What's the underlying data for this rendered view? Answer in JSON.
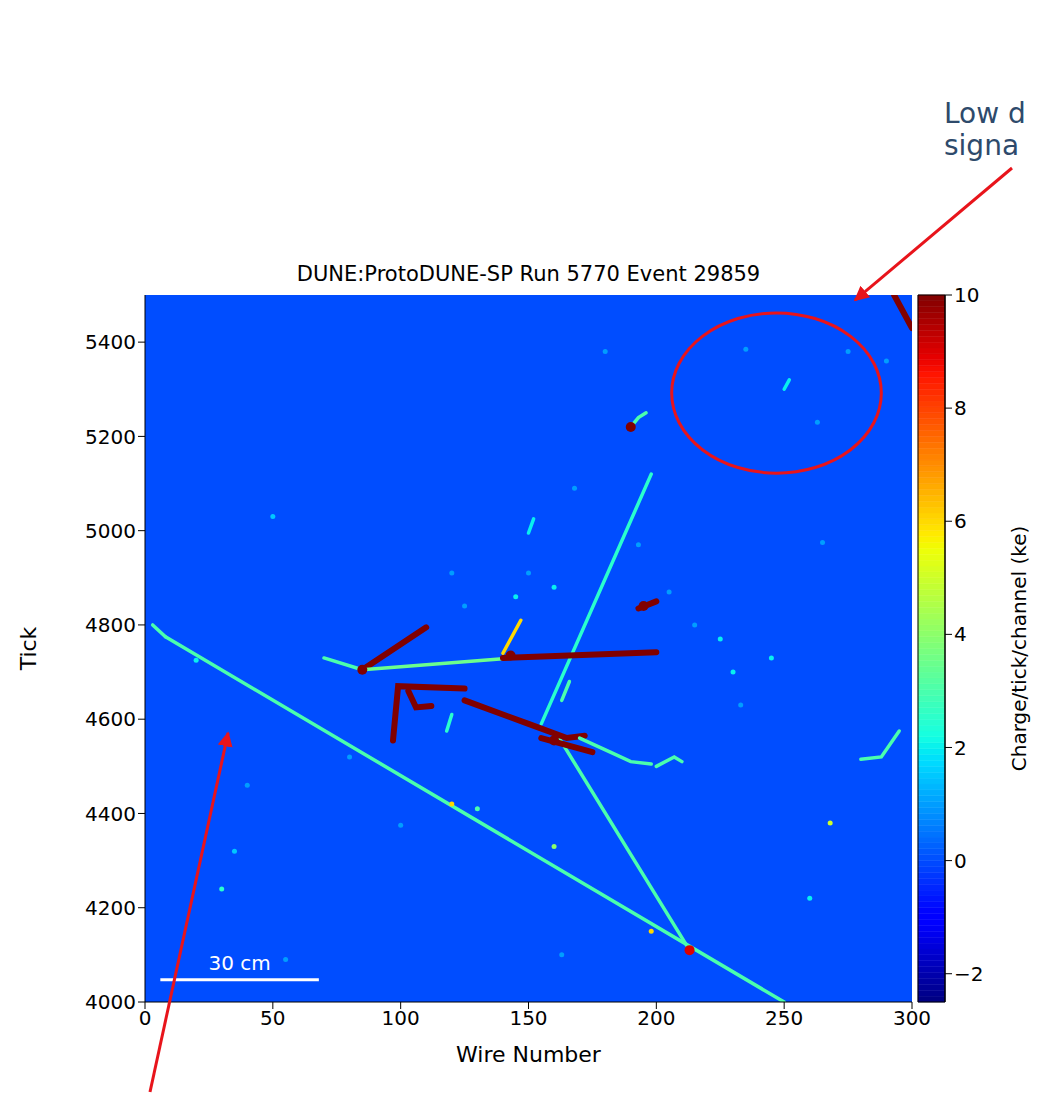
{
  "chart_data": {
    "type": "heatmap",
    "title": "DUNE:ProtoDUNE-SP Run 5770 Event 29859",
    "x_label": "Wire Number",
    "y_label": "Tick",
    "xlim": [
      0,
      300
    ],
    "xticks": [
      0,
      50,
      100,
      150,
      200,
      250,
      300
    ],
    "ylim": [
      4000,
      5500
    ],
    "yticks": [
      4000,
      4200,
      4400,
      4600,
      4800,
      5000,
      5200,
      5400
    ],
    "colorbar": {
      "label": "Charge/tick/channel (ke)",
      "range": [
        -2.5,
        10
      ],
      "ticks": [
        {
          "value": -2,
          "label": "−2"
        },
        0,
        2,
        4,
        6,
        8,
        10
      ]
    },
    "tracks": [
      {
        "x": [
          3,
          8
        ],
        "y": [
          4800,
          4775
        ],
        "charge": 3
      },
      {
        "x": [
          8,
          250
        ],
        "y": [
          4775,
          4000
        ],
        "charge": 3
      },
      {
        "x": [
          213,
          162
        ],
        "y": [
          4110,
          4560
        ],
        "charge": 3
      },
      {
        "x": [
          155,
          198
        ],
        "y": [
          4590,
          5120
        ],
        "charge": 2.5
      },
      {
        "x": [
          85,
          110
        ],
        "y": [
          4705,
          4795
        ],
        "charge": 10
      },
      {
        "x": [
          70,
          85
        ],
        "y": [
          4730,
          4705
        ],
        "charge": 3
      },
      {
        "x": [
          85,
          140
        ],
        "y": [
          4705,
          4728
        ],
        "charge": 3.5
      },
      {
        "x": [
          140,
          200
        ],
        "y": [
          4730,
          4742
        ],
        "charge": 10
      },
      {
        "x": [
          97,
          99,
          125
        ],
        "y": [
          4555,
          4670,
          4665
        ],
        "charge": 10
      },
      {
        "x": [
          103,
          106,
          112
        ],
        "y": [
          4660,
          4625,
          4628
        ],
        "charge": 10
      },
      {
        "x": [
          125,
          150,
          165,
          172
        ],
        "y": [
          4640,
          4590,
          4560,
          4565
        ],
        "charge": 10
      },
      {
        "x": [
          155,
          175
        ],
        "y": [
          4560,
          4530
        ],
        "charge": 10
      },
      {
        "x": [
          140,
          147
        ],
        "y": [
          4740,
          4810
        ],
        "charge": 6
      },
      {
        "x": [
          170,
          182,
          190,
          198
        ],
        "y": [
          4560,
          4530,
          4510,
          4505
        ],
        "charge": 3
      },
      {
        "x": [
          280,
          288,
          295
        ],
        "y": [
          4515,
          4520,
          4575
        ],
        "charge": 3
      },
      {
        "x": [
          190,
          193,
          196
        ],
        "y": [
          5220,
          5240,
          5250
        ],
        "charge": 3
      },
      {
        "x": [
          193,
          200
        ],
        "y": [
          4835,
          4850
        ],
        "charge": 10
      },
      {
        "x": [
          293,
          300
        ],
        "y": [
          5500,
          5430
        ],
        "charge": 10
      },
      {
        "x": [
          250,
          252
        ],
        "y": [
          5300,
          5320
        ],
        "charge": 2
      },
      {
        "x": [
          163,
          166
        ],
        "y": [
          4640,
          4680
        ],
        "charge": 3
      },
      {
        "x": [
          200,
          207,
          210
        ],
        "y": [
          4500,
          4520,
          4510
        ],
        "charge": 3
      },
      {
        "x": [
          118,
          120
        ],
        "y": [
          4575,
          4610
        ],
        "charge": 2.5
      },
      {
        "x": [
          150,
          152
        ],
        "y": [
          4995,
          5025
        ],
        "charge": 2
      }
    ],
    "deposits": {
      "x": [
        30,
        35,
        50,
        40,
        130,
        163,
        205,
        215,
        225,
        230,
        245,
        233,
        260,
        268,
        213,
        265,
        275,
        235,
        263,
        290,
        180,
        168,
        193,
        150,
        160,
        120,
        125,
        145,
        190,
        85,
        143,
        160,
        195,
        120,
        160,
        198,
        100,
        55,
        20,
        80
      ],
      "y": [
        4240,
        4320,
        5030,
        4460,
        4410,
        4100,
        4870,
        4800,
        4770,
        4700,
        4730,
        4630,
        4220,
        4380,
        4110,
        4975,
        5380,
        5385,
        5230,
        5360,
        5380,
        5090,
        4970,
        4910,
        4880,
        4910,
        4840,
        4860,
        5220,
        4705,
        4735,
        4555,
        4840,
        4420,
        4330,
        4150,
        4375,
        4090,
        4725,
        4520
      ],
      "charge": [
        2.5,
        1.5,
        1.5,
        1,
        3,
        1,
        1,
        1,
        2,
        2,
        2,
        1,
        2,
        5,
        9,
        1,
        1,
        1,
        1,
        1,
        1,
        1,
        1,
        1,
        2,
        1,
        1,
        2,
        10,
        10,
        10,
        10,
        10,
        6,
        4,
        6,
        1,
        1,
        2,
        1
      ]
    },
    "annotations": [
      {
        "text_lines": [
          "Low d",
          "signa"
        ],
        "circle": {
          "x": 247,
          "y": 5292,
          "rx": 41,
          "ry": 170
        },
        "arrow_to": [
          277.7,
          5489
        ]
      },
      {
        "arrow_to": [
          32.5,
          4571
        ]
      }
    ],
    "scale_bar": {
      "label": "30 cm",
      "x": [
        6,
        68
      ],
      "y": 4047
    }
  }
}
